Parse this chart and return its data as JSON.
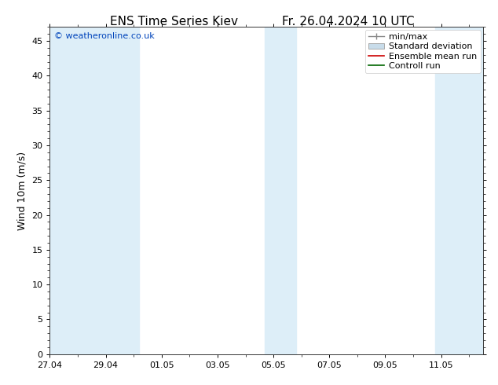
{
  "title_left": "ENS Time Series Kiev",
  "title_right": "Fr. 26.04.2024 10 UTC",
  "ylabel": "Wind 10m (m/s)",
  "watermark": "© weatheronline.co.uk",
  "ylim": [
    0,
    47
  ],
  "yticks": [
    0,
    5,
    10,
    15,
    20,
    25,
    30,
    35,
    40,
    45
  ],
  "xtick_labels": [
    "27.04",
    "29.04",
    "01.05",
    "03.05",
    "05.05",
    "07.05",
    "09.05",
    "11.05"
  ],
  "xtick_positions": [
    0,
    2,
    4,
    6,
    8,
    10,
    12,
    14
  ],
  "xlim": [
    0,
    15.5
  ],
  "bg_color": "#ffffff",
  "plot_bg_color": "#ffffff",
  "shaded_regions": [
    [
      0.0,
      1.8
    ],
    [
      1.8,
      3.2
    ],
    [
      7.7,
      8.8
    ],
    [
      13.8,
      15.5
    ]
  ],
  "shaded_color": "#ddeef8",
  "legend_labels": [
    "min/max",
    "Standard deviation",
    "Ensemble mean run",
    "Controll run"
  ],
  "minmax_color": "#888888",
  "std_face_color": "#c8dcea",
  "std_edge_color": "#aaaaaa",
  "ens_color": "#cc0000",
  "ctrl_color": "#006600",
  "font_size_title": 11,
  "font_size_axis": 9,
  "font_size_ticks": 8,
  "font_size_legend": 8,
  "font_size_watermark": 8,
  "watermark_color": "#0044bb"
}
